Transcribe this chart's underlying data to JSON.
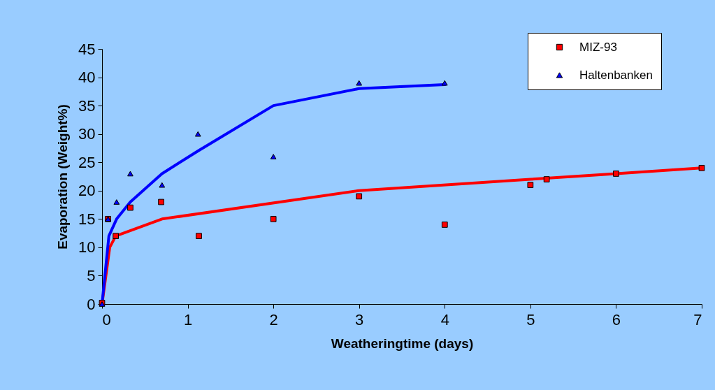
{
  "chart_data": {
    "type": "scatter",
    "xlabel": "Weatheringtime (days)",
    "ylabel": "Evaporation (Weight%)",
    "xlim": [
      0,
      7
    ],
    "xticks": [
      0,
      1,
      2,
      3,
      4,
      5,
      6,
      7
    ],
    "ylim": [
      0,
      45
    ],
    "yticks": [
      0,
      5,
      10,
      15,
      20,
      25,
      30,
      35,
      40,
      45
    ],
    "grid": false,
    "legend": "top right",
    "series": [
      {
        "name": "MIZ-93",
        "marker": "square",
        "color": "#ff0000",
        "x": [
          0,
          0.07,
          0.16,
          0.33,
          0.69,
          1.13,
          2,
          3,
          4,
          5,
          5.19,
          6,
          7
        ],
        "values": [
          0.2,
          15,
          12,
          17,
          18,
          12,
          15,
          19,
          14,
          21,
          22,
          23,
          24
        ]
      },
      {
        "type": "line",
        "color": "#ff0000",
        "x": [
          0,
          0.09,
          0.16,
          0.7,
          3,
          5,
          6,
          7
        ],
        "values": [
          0,
          10,
          12,
          15,
          20,
          22,
          23,
          24
        ]
      },
      {
        "name": "Haltenbanken",
        "marker": "triangle",
        "color": "#0000ff",
        "x": [
          0,
          0.07,
          0.17,
          0.33,
          0.7,
          1.12,
          2,
          3,
          4
        ],
        "values": [
          0,
          15,
          18,
          23,
          21,
          30,
          26,
          39,
          39
        ]
      },
      {
        "type": "line",
        "color": "#0000ff",
        "x": [
          0,
          0.08,
          0.17,
          0.33,
          0.7,
          1.12,
          2,
          3,
          4
        ],
        "values": [
          0,
          12,
          15,
          18,
          23,
          27,
          35,
          38,
          38.7
        ]
      }
    ]
  }
}
